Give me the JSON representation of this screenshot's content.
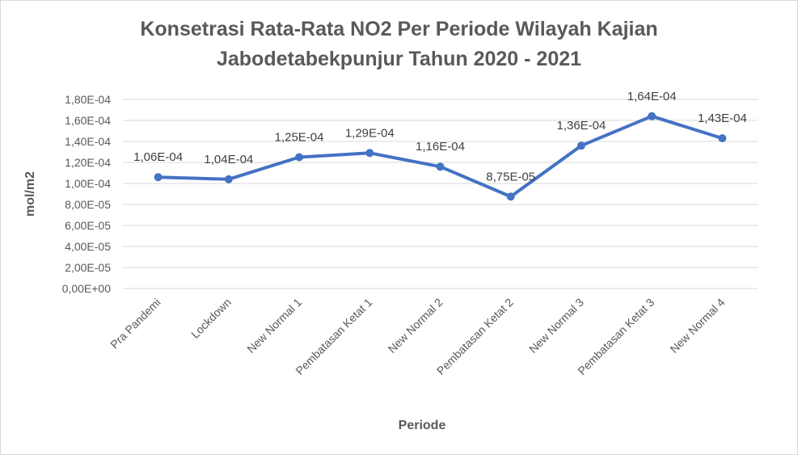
{
  "chart_data": {
    "type": "line",
    "title_line1": "Konsetrasi Rata-Rata NO2 Per Periode Wilayah Kajian",
    "title_line2": "Jabodetabekpunjur Tahun 2020 - 2021",
    "xlabel": "Periode",
    "ylabel": "mol/m2",
    "ylim": [
      0,
      0.00018
    ],
    "y_ticks": [
      0,
      2e-05,
      4e-05,
      6e-05,
      8e-05,
      0.0001,
      0.00012,
      0.00014,
      0.00016,
      0.00018
    ],
    "y_tick_labels": [
      "0,00E+00",
      "2,00E-05",
      "4,00E-05",
      "6,00E-05",
      "8,00E-05",
      "1,00E-04",
      "1,20E-04",
      "1,40E-04",
      "1,60E-04",
      "1,80E-04"
    ],
    "grid": true,
    "legend": "none",
    "categories": [
      "Pra Pandemi",
      "Lockdown",
      "New Normal 1",
      "Pembatasan Ketat 1",
      "New Normal 2",
      "Pembatasan Ketat 2",
      "New Normal 3",
      "Pembatasan Ketat 3",
      "New Normal 4"
    ],
    "series": [
      {
        "values": [
          0.000106,
          0.000104,
          0.000125,
          0.000129,
          0.000116,
          8.75e-05,
          0.000136,
          0.000164,
          0.000143
        ],
        "labels": [
          "1,06E-04",
          "1,04E-04",
          "1,25E-04",
          "1,29E-04",
          "1,16E-04",
          "8,75E-05",
          "1,36E-04",
          "1,64E-04",
          "1,43E-04"
        ],
        "color": "#4472c4"
      }
    ],
    "grid_color": "#d9d9d9"
  }
}
